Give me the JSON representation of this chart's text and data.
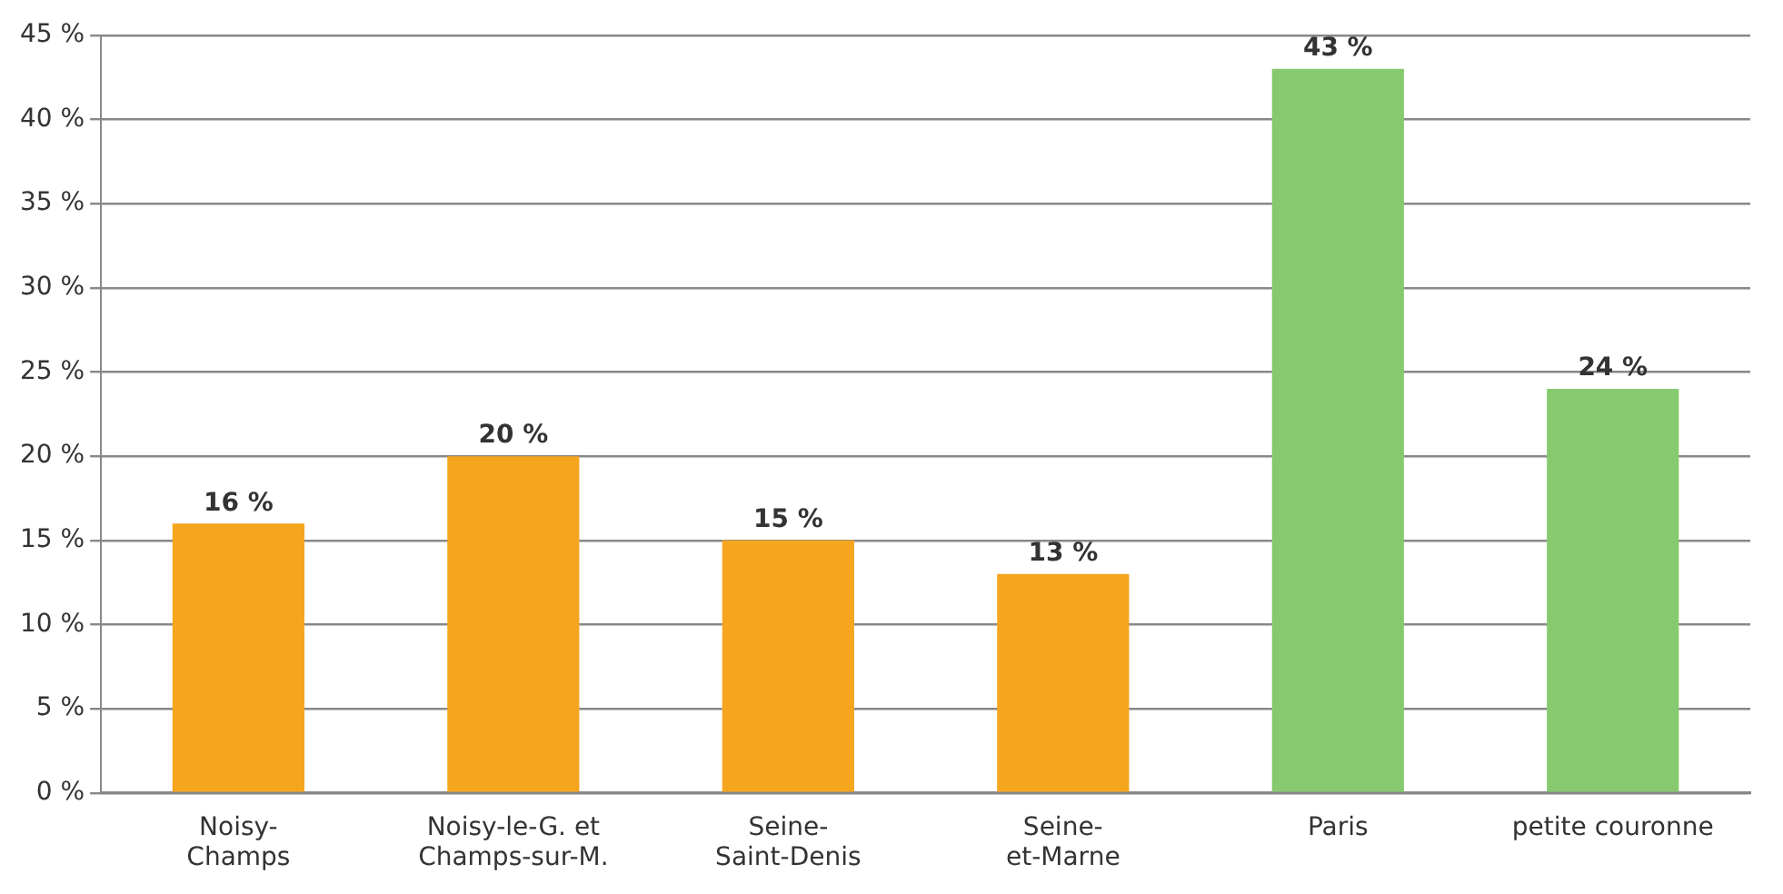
{
  "chart_data": {
    "type": "bar",
    "categories": [
      "Noisy-\nChamps",
      "Noisy-le-G. et\nChamps-sur-M.",
      "Seine-\nSaint-Denis",
      "Seine-\net-Marne",
      "Paris",
      "petite couronne"
    ],
    "values": [
      16,
      20,
      15,
      13,
      43,
      24
    ],
    "colors": [
      "#f6a51e",
      "#f6a51e",
      "#f6a51e",
      "#f6a51e",
      "#86c96f",
      "#86c96f"
    ],
    "ylim": [
      0,
      45
    ],
    "yticks": [
      {
        "value": 0,
        "label": "0 %"
      },
      {
        "value": 5,
        "label": "5 %"
      },
      {
        "value": 10,
        "label": "10 %"
      },
      {
        "value": 15,
        "label": "15 %"
      },
      {
        "value": 20,
        "label": "20 %"
      },
      {
        "value": 25,
        "label": "25 %"
      },
      {
        "value": 30,
        "label": "30 %"
      },
      {
        "value": 35,
        "label": "35 %"
      },
      {
        "value": 40,
        "label": "40 %"
      },
      {
        "value": 45,
        "label": "45 %"
      }
    ],
    "value_labels": [
      "16 %",
      "20 %",
      "15 %",
      "13 %",
      "43 %",
      "24 %"
    ],
    "grid": "y",
    "legend": false
  }
}
